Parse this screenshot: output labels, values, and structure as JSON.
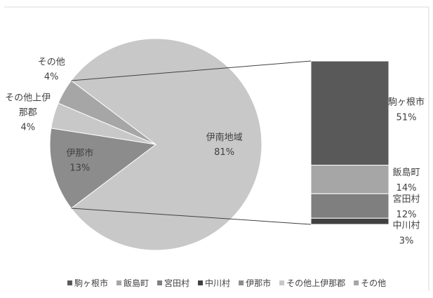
{
  "chart_data": {
    "type": "pie",
    "variant": "bar-of-pie",
    "title": "",
    "legend_position": "bottom",
    "pie": {
      "slices": [
        {
          "name": "伊南地域",
          "label": "伊南地域",
          "value_label": "81%",
          "value": 81,
          "color": "#c8c8c8"
        },
        {
          "name": "伊那市",
          "label": "伊那市",
          "value_label": "13%",
          "value": 13,
          "color": "#8c8c8c"
        },
        {
          "name": "その他上伊那郡",
          "label": "その他上伊\n那郡",
          "value_label": "4%",
          "value": 4,
          "color": "#c8c8c8"
        },
        {
          "name": "その他",
          "label": "その他",
          "value_label": "4%",
          "value": 4,
          "color": "#a6a6a6"
        }
      ]
    },
    "bar": {
      "segments": [
        {
          "name": "駒ヶ根市",
          "label": "駒ヶ根市",
          "value_label": "51%",
          "value": 51,
          "color": "#595959"
        },
        {
          "name": "飯島町",
          "label": "飯島町",
          "value_label": "14%",
          "value": 14,
          "color": "#a6a6a6"
        },
        {
          "name": "宮田村",
          "label": "宮田村",
          "value_label": "12%",
          "value": 12,
          "color": "#7f7f7f"
        },
        {
          "name": "中川村",
          "label": "中川村",
          "value_label": "3%",
          "value": 3,
          "color": "#404040"
        }
      ]
    },
    "legend": [
      {
        "label": "駒ヶ根市",
        "color": "#595959"
      },
      {
        "label": "飯島町",
        "color": "#a6a6a6"
      },
      {
        "label": "宮田村",
        "color": "#7f7f7f"
      },
      {
        "label": "中川村",
        "color": "#404040"
      },
      {
        "label": "伊那市",
        "color": "#8c8c8c"
      },
      {
        "label": "その他上伊那郡",
        "color": "#c8c8c8"
      },
      {
        "label": "その他",
        "color": "#a6a6a6"
      }
    ]
  }
}
